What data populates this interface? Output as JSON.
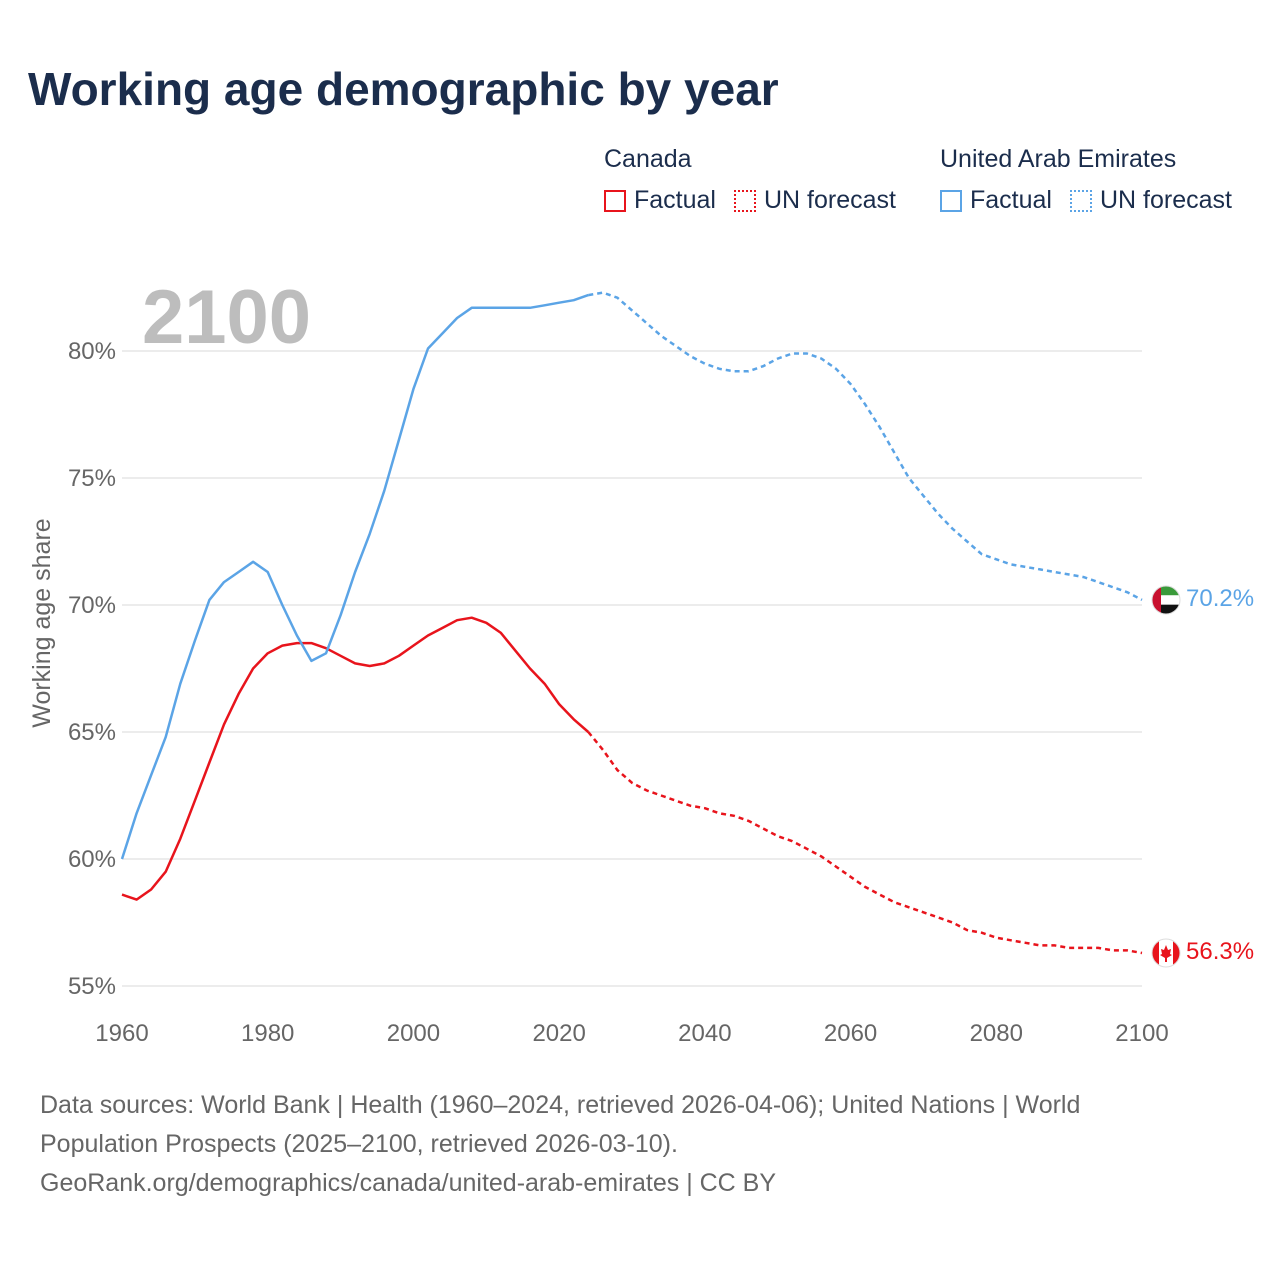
{
  "title": "Working age demographic by year",
  "legend": {
    "canada": {
      "name": "Canada",
      "factual": "Factual",
      "forecast": "UN forecast"
    },
    "uae": {
      "name": "United Arab Emirates",
      "factual": "Factual",
      "forecast": "UN forecast"
    }
  },
  "colors": {
    "canada": "#e8141c",
    "uae": "#5ba4e6",
    "title": "#1b2d4c",
    "grid": "#e6e6e6"
  },
  "footer": {
    "line1": "Data sources: World Bank | Health (1960–2024, retrieved 2026-04-06); United Nations | World",
    "line2": "Population Prospects (2025–2100, retrieved 2026-03-10).",
    "line3": "GeoRank.org/demographics/canada/united-arab-emirates | CC BY"
  },
  "chart_data": {
    "type": "line",
    "title": "Working age demographic by year",
    "year_label": "2100",
    "xlabel": "",
    "ylabel": "Working age share",
    "xlim": [
      1960,
      2100
    ],
    "ylim": [
      55,
      82.5
    ],
    "x_ticks": [
      1960,
      1980,
      2000,
      2020,
      2040,
      2060,
      2080,
      2100
    ],
    "x_tick_labels": [
      "1960",
      "1980",
      "2000",
      "2020",
      "2040",
      "2060",
      "2080",
      "2100"
    ],
    "y_ticks": [
      55,
      60,
      65,
      70,
      75,
      80
    ],
    "y_tick_labels": [
      "55%",
      "60%",
      "65%",
      "70%",
      "75%",
      "80%"
    ],
    "factual_until": 2024,
    "series": [
      {
        "name": "Canada",
        "end_label": "56.3%",
        "points": [
          [
            1960,
            58.6
          ],
          [
            1962,
            58.4
          ],
          [
            1964,
            58.8
          ],
          [
            1966,
            59.5
          ],
          [
            1968,
            60.8
          ],
          [
            1970,
            62.3
          ],
          [
            1972,
            63.8
          ],
          [
            1974,
            65.3
          ],
          [
            1976,
            66.5
          ],
          [
            1978,
            67.5
          ],
          [
            1980,
            68.1
          ],
          [
            1982,
            68.4
          ],
          [
            1984,
            68.5
          ],
          [
            1986,
            68.5
          ],
          [
            1988,
            68.3
          ],
          [
            1990,
            68.0
          ],
          [
            1992,
            67.7
          ],
          [
            1994,
            67.6
          ],
          [
            1996,
            67.7
          ],
          [
            1998,
            68.0
          ],
          [
            2000,
            68.4
          ],
          [
            2002,
            68.8
          ],
          [
            2004,
            69.1
          ],
          [
            2006,
            69.4
          ],
          [
            2008,
            69.5
          ],
          [
            2010,
            69.3
          ],
          [
            2012,
            68.9
          ],
          [
            2014,
            68.2
          ],
          [
            2016,
            67.5
          ],
          [
            2018,
            66.9
          ],
          [
            2020,
            66.1
          ],
          [
            2022,
            65.5
          ],
          [
            2024,
            65.0
          ],
          [
            2026,
            64.3
          ],
          [
            2028,
            63.5
          ],
          [
            2030,
            63.0
          ],
          [
            2032,
            62.7
          ],
          [
            2034,
            62.5
          ],
          [
            2036,
            62.3
          ],
          [
            2038,
            62.1
          ],
          [
            2040,
            62.0
          ],
          [
            2042,
            61.8
          ],
          [
            2044,
            61.7
          ],
          [
            2046,
            61.5
          ],
          [
            2048,
            61.2
          ],
          [
            2050,
            60.9
          ],
          [
            2052,
            60.7
          ],
          [
            2054,
            60.4
          ],
          [
            2056,
            60.1
          ],
          [
            2058,
            59.7
          ],
          [
            2060,
            59.3
          ],
          [
            2062,
            58.9
          ],
          [
            2064,
            58.6
          ],
          [
            2066,
            58.3
          ],
          [
            2068,
            58.1
          ],
          [
            2070,
            57.9
          ],
          [
            2072,
            57.7
          ],
          [
            2074,
            57.5
          ],
          [
            2076,
            57.2
          ],
          [
            2078,
            57.1
          ],
          [
            2080,
            56.9
          ],
          [
            2082,
            56.8
          ],
          [
            2084,
            56.7
          ],
          [
            2086,
            56.6
          ],
          [
            2088,
            56.6
          ],
          [
            2090,
            56.5
          ],
          [
            2092,
            56.5
          ],
          [
            2094,
            56.5
          ],
          [
            2096,
            56.4
          ],
          [
            2098,
            56.4
          ],
          [
            2100,
            56.3
          ]
        ]
      },
      {
        "name": "United Arab Emirates",
        "end_label": "70.2%",
        "points": [
          [
            1960,
            60.0
          ],
          [
            1962,
            61.8
          ],
          [
            1964,
            63.3
          ],
          [
            1966,
            64.8
          ],
          [
            1968,
            66.9
          ],
          [
            1970,
            68.6
          ],
          [
            1972,
            70.2
          ],
          [
            1974,
            70.9
          ],
          [
            1976,
            71.3
          ],
          [
            1978,
            71.7
          ],
          [
            1980,
            71.3
          ],
          [
            1982,
            70.0
          ],
          [
            1984,
            68.8
          ],
          [
            1986,
            67.8
          ],
          [
            1988,
            68.1
          ],
          [
            1990,
            69.6
          ],
          [
            1992,
            71.3
          ],
          [
            1994,
            72.8
          ],
          [
            1996,
            74.5
          ],
          [
            1998,
            76.5
          ],
          [
            2000,
            78.5
          ],
          [
            2002,
            80.1
          ],
          [
            2004,
            80.7
          ],
          [
            2006,
            81.3
          ],
          [
            2008,
            81.7
          ],
          [
            2010,
            81.7
          ],
          [
            2012,
            81.7
          ],
          [
            2014,
            81.7
          ],
          [
            2016,
            81.7
          ],
          [
            2018,
            81.8
          ],
          [
            2020,
            81.9
          ],
          [
            2022,
            82.0
          ],
          [
            2024,
            82.2
          ],
          [
            2026,
            82.3
          ],
          [
            2028,
            82.1
          ],
          [
            2030,
            81.6
          ],
          [
            2032,
            81.1
          ],
          [
            2034,
            80.6
          ],
          [
            2036,
            80.2
          ],
          [
            2038,
            79.8
          ],
          [
            2040,
            79.5
          ],
          [
            2042,
            79.3
          ],
          [
            2044,
            79.2
          ],
          [
            2046,
            79.2
          ],
          [
            2048,
            79.4
          ],
          [
            2050,
            79.7
          ],
          [
            2052,
            79.9
          ],
          [
            2054,
            79.9
          ],
          [
            2056,
            79.7
          ],
          [
            2058,
            79.3
          ],
          [
            2060,
            78.7
          ],
          [
            2062,
            77.9
          ],
          [
            2064,
            77.0
          ],
          [
            2066,
            76.0
          ],
          [
            2068,
            75.0
          ],
          [
            2070,
            74.3
          ],
          [
            2072,
            73.6
          ],
          [
            2074,
            73.0
          ],
          [
            2076,
            72.5
          ],
          [
            2078,
            72.0
          ],
          [
            2080,
            71.8
          ],
          [
            2082,
            71.6
          ],
          [
            2084,
            71.5
          ],
          [
            2086,
            71.4
          ],
          [
            2088,
            71.3
          ],
          [
            2090,
            71.2
          ],
          [
            2092,
            71.1
          ],
          [
            2094,
            70.9
          ],
          [
            2096,
            70.7
          ],
          [
            2098,
            70.5
          ],
          [
            2100,
            70.2
          ]
        ]
      }
    ]
  }
}
